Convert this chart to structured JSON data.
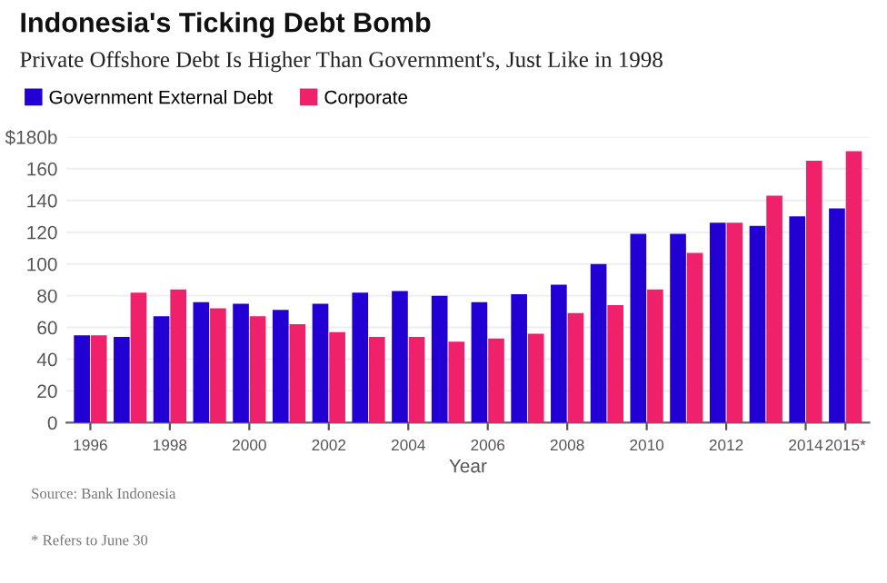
{
  "chart_data": {
    "type": "bar",
    "title": "Indonesia's Ticking Debt Bomb",
    "subtitle": "Private Offshore Debt Is Higher Than Government's, Just Like in 1998",
    "xlabel": "Year",
    "categories": [
      "1996",
      null,
      "1998",
      null,
      "2000",
      null,
      "2002",
      null,
      "2004",
      null,
      "2006",
      null,
      "2008",
      null,
      "2010",
      null,
      "2012",
      null,
      "2014",
      "2015*"
    ],
    "series": [
      {
        "name": "Government External Debt",
        "color": "#2200d4",
        "values": [
          55,
          54,
          67,
          76,
          75,
          71,
          75,
          82,
          83,
          80,
          76,
          81,
          87,
          100,
          119,
          119,
          126,
          124,
          130,
          135
        ]
      },
      {
        "name": "Corporate",
        "color": "#f0216b",
        "values": [
          55,
          82,
          84,
          72,
          67,
          62,
          57,
          54,
          54,
          51,
          53,
          56,
          69,
          74,
          84,
          107,
          126,
          143,
          165,
          171
        ]
      }
    ],
    "ylim": [
      0,
      180
    ],
    "yticks": [
      0,
      20,
      40,
      60,
      80,
      100,
      120,
      140,
      160,
      {
        "value": 180,
        "label": "$180b"
      }
    ],
    "grid": "y",
    "legend": "top left",
    "annotations": [
      "Source: Bank Indonesia",
      "* Refers to June 30"
    ]
  }
}
